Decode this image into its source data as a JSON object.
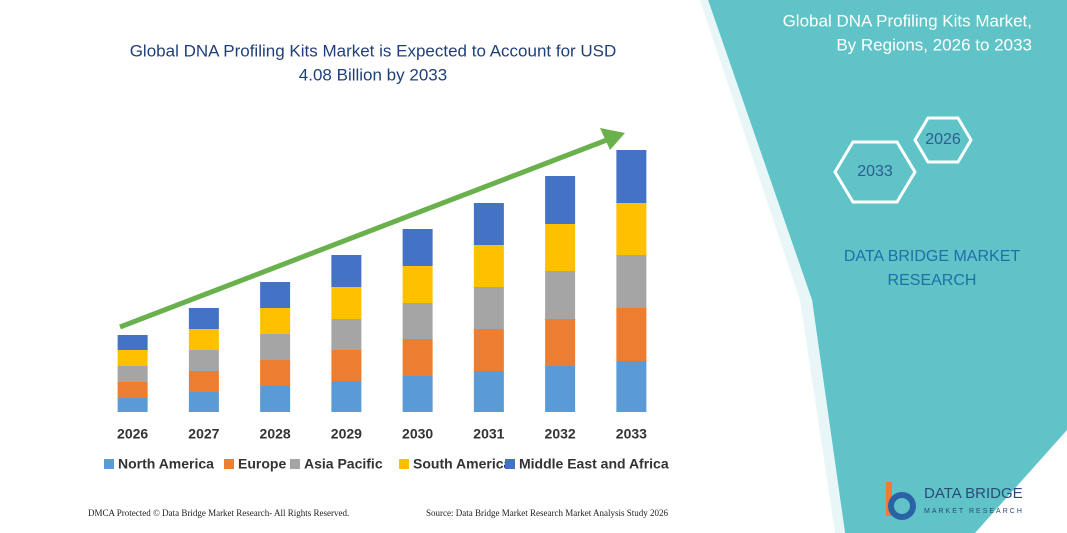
{
  "chart_data": {
    "type": "stacked_bar",
    "title": [
      "Global DNA Profiling Kits Market is Expected to Account for USD",
      "4.08 Billion by 2033"
    ],
    "categories": [
      "2026",
      "2027",
      "2028",
      "2029",
      "2030",
      "2031",
      "2032",
      "2033"
    ],
    "series": [
      {
        "name": "North America",
        "color": "#5b9bd5",
        "values": [
          14,
          20,
          26,
          31,
          36,
          41,
          46,
          51
        ]
      },
      {
        "name": "Europe",
        "color": "#ed7d31",
        "values": [
          16,
          21,
          26,
          31,
          37,
          42,
          47,
          53
        ]
      },
      {
        "name": "Asia Pacific",
        "color": "#a5a5a5",
        "values": [
          16,
          21,
          26,
          31,
          36,
          42,
          48,
          53
        ]
      },
      {
        "name": "South America",
        "color": "#ffc000",
        "values": [
          16,
          21,
          26,
          32,
          37,
          42,
          47,
          52
        ]
      },
      {
        "name": "Middle East and Africa",
        "color": "#4472c4",
        "values": [
          15,
          21,
          26,
          32,
          37,
          42,
          48,
          53
        ]
      }
    ],
    "ylim": [
      0,
      270
    ]
  },
  "panel": {
    "title": [
      "Global DNA Profiling Kits Market,",
      "By Regions, 2026 to 2033"
    ],
    "hexagons": [
      "2026",
      "2033"
    ],
    "brand": [
      "DATA BRIDGE MARKET",
      "RESEARCH"
    ],
    "logo": [
      "DATA BRIDGE",
      "MARKET RESEARCH"
    ]
  },
  "footer": {
    "left": "DMCA Protected © Data Bridge Market Research- All Rights Reserved.",
    "right": "Source: Data Bridge Market Research Market Analysis Study 2026"
  }
}
